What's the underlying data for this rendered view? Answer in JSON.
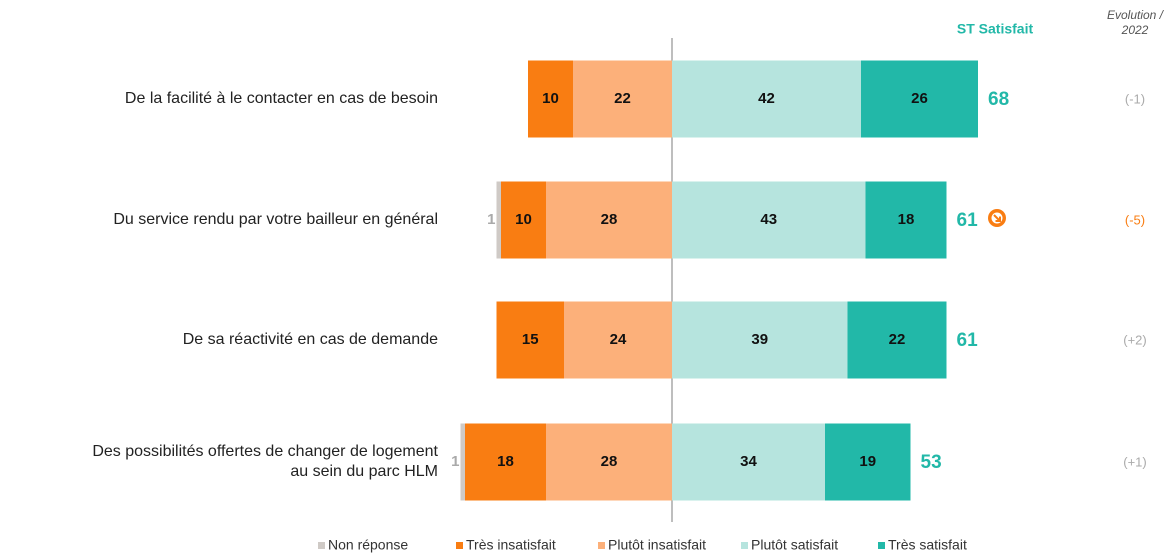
{
  "chart_data": {
    "type": "diverging-bar",
    "total_title": "ST Satisfait",
    "evolution_title": [
      "Evolution /",
      "2022"
    ],
    "categories": [
      [
        "De la facilité à le contacter en cas de besoin"
      ],
      [
        "Du service rendu par votre bailleur en général"
      ],
      [
        "De sa réactivité en cas de demande"
      ],
      [
        "Des possibilités offertes de changer de logement",
        "au sein du parc HLM"
      ]
    ],
    "series": [
      {
        "name": "Non réponse",
        "color": "#cfcac6",
        "side": "left",
        "values": [
          0,
          1,
          0,
          1
        ]
      },
      {
        "name": "Très insatisfait",
        "color": "#f97d12",
        "side": "left",
        "values": [
          10,
          10,
          15,
          18
        ]
      },
      {
        "name": "Plutôt insatisfait",
        "color": "#fcb07a",
        "side": "left",
        "values": [
          22,
          28,
          24,
          28
        ]
      },
      {
        "name": "Plutôt satisfait",
        "color": "#b6e4de",
        "side": "right",
        "values": [
          42,
          43,
          39,
          34
        ]
      },
      {
        "name": "Très satisfait",
        "color": "#22b8a8",
        "side": "right",
        "values": [
          26,
          18,
          22,
          19
        ]
      }
    ],
    "totals": [
      68,
      61,
      61,
      53
    ],
    "total_color": "#22b8a8",
    "evolution": [
      "(-1)",
      "(-5)",
      "(+2)",
      "(+1)"
    ],
    "evolution_colors": [
      "#aaaaaa",
      "#f97d12",
      "#aaaaaa",
      "#aaaaaa"
    ]
  }
}
